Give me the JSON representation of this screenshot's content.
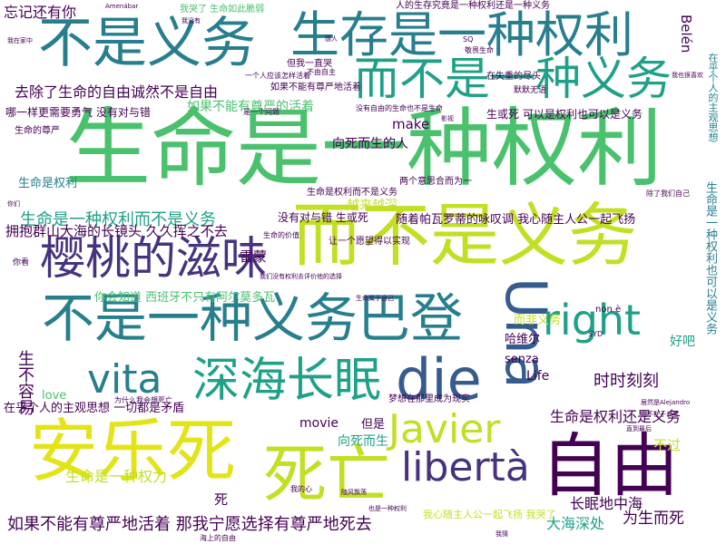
{
  "word_cloud": {
    "colors": {
      "background": "#ffffff",
      "dark_purple": "#440154",
      "purple": "#46327e",
      "blue": "#365c8d",
      "teal_blue": "#277f8e",
      "teal": "#1fa187",
      "green": "#4ac16d",
      "light_green": "#a0da39",
      "yellow_green": "#c2df23",
      "yellow": "#e3e418"
    },
    "words": [
      {
        "text": "生命是一种权利"
      },
      {
        "text": "而不是义务"
      },
      {
        "text": "不是义务"
      },
      {
        "text": "生存是一种权利"
      },
      {
        "text": "不是一种义务巴登"
      },
      {
        "text": "安乐死"
      },
      {
        "text": "死亡"
      },
      {
        "text": "自由"
      },
      {
        "text": "die"
      },
      {
        "text": "Una"
      },
      {
        "text": "樱桃的滋味"
      },
      {
        "text": "深海长眠"
      },
      {
        "text": "而不是一种义务"
      },
      {
        "text": "libertà"
      },
      {
        "text": "right"
      },
      {
        "text": "Javier"
      },
      {
        "text": "vita"
      },
      {
        "text": "去除了生命的自由诚然不是自由"
      },
      {
        "text": "如果不能有尊严的活着"
      },
      {
        "text": "如果不能有尊严地活着 那我宁愿选择有尊严地死去"
      },
      {
        "text": "生命是一种权利而不是义务"
      },
      {
        "text": "拥抱群山大海的长镜头 久久挥之不去"
      },
      {
        "text": "生命是权利还是义务"
      },
      {
        "text": "生命是一种权力"
      },
      {
        "text": "向死而生的人"
      },
      {
        "text": "向死而生"
      },
      {
        "text": "时时刻刻"
      },
      {
        "text": "长眠地中海"
      },
      {
        "text": "为生而死"
      },
      {
        "text": "大海深处"
      },
      {
        "text": "生不容易"
      },
      {
        "text": "哈维尔"
      },
      {
        "text": "忘记还有你"
      },
      {
        "text": "生命是权利"
      },
      {
        "text": "你会知道 西班牙不只有阿尔莫多瓦"
      },
      {
        "text": "随着帕瓦罗蒂的咏叹调 我心随主人公一起飞扬"
      },
      {
        "text": "雷蒙"
      },
      {
        "text": "越来越深"
      },
      {
        "text": "Belén"
      },
      {
        "text": "好吧"
      },
      {
        "text": "不过"
      },
      {
        "text": "但是"
      },
      {
        "text": "make"
      },
      {
        "text": "movie"
      },
      {
        "text": "Life"
      },
      {
        "text": "love"
      },
      {
        "text": "senza"
      },
      {
        "text": "在乎个人的主观思想 一切都是矛盾"
      },
      {
        "text": "生命是一种权利也可以是义务"
      },
      {
        "text": "在乎个人的主观思想"
      },
      {
        "text": "哪一样更需要勇气 没有对与错"
      },
      {
        "text": "没有对与错 生或死"
      },
      {
        "text": "而非义务"
      },
      {
        "text": "我心随主人公一起飞扬 我哭了"
      },
      {
        "text": "死"
      },
      {
        "text": "生命是权利而不是义务"
      },
      {
        "text": "生或死 可以是权利也可以是义务"
      },
      {
        "text": "在失重的尽头"
      },
      {
        "text": "我哭了 生命如此脆弱"
      },
      {
        "text": "人的生存究竟是一种权利还是一种义务"
      },
      {
        "text": "生命的尊严"
      },
      {
        "text": "如果不能有尊严地活着"
      },
      {
        "text": "但我一直哭"
      },
      {
        "text": "一个人应该怎样活着"
      },
      {
        "text": "是一个问题"
      },
      {
        "text": "梦想在那里成为现实"
      },
      {
        "text": "两个意思合而为一"
      },
      {
        "text": "让一个愿望得以实现"
      },
      {
        "text": "生命的价值"
      },
      {
        "text": "海上的自由"
      },
      {
        "text": "我的心"
      },
      {
        "text": "你看"
      },
      {
        "text": "默默无语"
      },
      {
        "text": "敬畏生命"
      },
      {
        "text": "除了我们自己"
      },
      {
        "text": "不由自主"
      },
      {
        "text": "non è"
      },
      {
        "text": "SYD"
      },
      {
        "text": "SQ"
      },
      {
        "text": "没有自由的生命也不是生命"
      },
      {
        "text": "居然是Alejandro"
      },
      {
        "text": "我们没有权利去评价他的选择"
      },
      {
        "text": "生命属于自己"
      },
      {
        "text": "而不在于长度"
      },
      {
        "text": "直到最后"
      },
      {
        "text": "我猜"
      },
      {
        "text": "我没有"
      },
      {
        "text": "也是一种权利"
      },
      {
        "text": "Amenábar"
      },
      {
        "text": "你们"
      },
      {
        "text": "影视"
      },
      {
        "text": "我在家中"
      },
      {
        "text": "感人"
      },
      {
        "text": "随风飘荡"
      },
      {
        "text": "为什么我会想死亡"
      },
      {
        "text": "我也很喜欢"
      }
    ]
  }
}
